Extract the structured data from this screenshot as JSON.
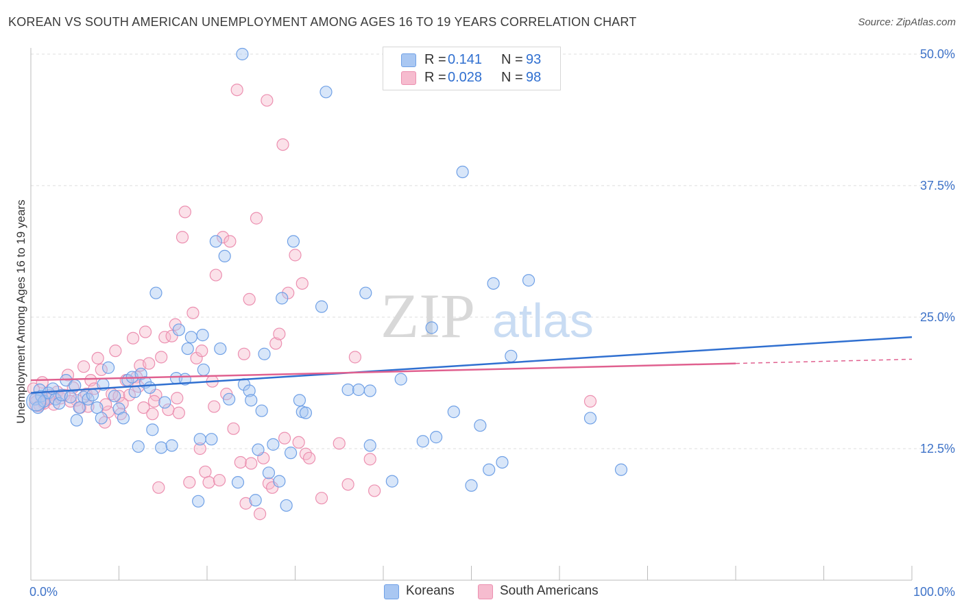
{
  "title": "KOREAN VS SOUTH AMERICAN UNEMPLOYMENT AMONG AGES 16 TO 19 YEARS CORRELATION CHART",
  "source": "Source: ZipAtlas.com",
  "watermark": {
    "zip": "ZIP",
    "atlas": "atlas"
  },
  "colors": {
    "blue": "#6fa0e6",
    "blue_fill": "#a9c7f2",
    "blue_line": "#2f6fd0",
    "pink": "#ec8fb0",
    "pink_fill": "#f6bccf",
    "pink_line": "#e0608f",
    "axis_text": "#3d72c8",
    "grid": "#dcdcdc"
  },
  "legend": {
    "r_label": "R =",
    "n_label": "N =",
    "blue": {
      "r": "0.141",
      "n": "93"
    },
    "pink": {
      "r": "0.028",
      "n": "98"
    }
  },
  "bottom_legend": {
    "blue": "Koreans",
    "pink": "South Americans"
  },
  "chart_data": {
    "type": "scatter",
    "ylabel": "Unemployment Among Ages 16 to 19 years",
    "xlabel": "",
    "xlim": [
      0,
      100
    ],
    "ylim": [
      0,
      50
    ],
    "x_tick_labels": [
      "0.0%",
      "100.0%"
    ],
    "y_ticks": [
      12.5,
      25.0,
      37.5,
      50.0
    ],
    "y_tick_labels": [
      "12.5%",
      "25.0%",
      "37.5%",
      "50.0%"
    ],
    "grid": true,
    "series": [
      {
        "name": "Koreans",
        "trend": {
          "x": [
            0,
            100
          ],
          "y": [
            17.8,
            23.1
          ]
        },
        "points": [
          [
            0.5,
            17.2
          ],
          [
            0.8,
            16.4
          ],
          [
            1.0,
            18.1
          ],
          [
            1.2,
            17.5
          ],
          [
            1.5,
            17.0
          ],
          [
            2.0,
            17.8
          ],
          [
            2.5,
            18.2
          ],
          [
            2.8,
            17.2
          ],
          [
            3.2,
            16.8
          ],
          [
            3.5,
            17.6
          ],
          [
            4.0,
            19.0
          ],
          [
            4.5,
            17.4
          ],
          [
            5.0,
            18.5
          ],
          [
            5.5,
            16.4
          ],
          [
            5.2,
            15.2
          ],
          [
            6.0,
            17.4
          ],
          [
            6.5,
            17.2
          ],
          [
            7.0,
            17.6
          ],
          [
            7.5,
            16.4
          ],
          [
            8.0,
            15.4
          ],
          [
            8.2,
            18.6
          ],
          [
            8.8,
            20.2
          ],
          [
            9.5,
            17.5
          ],
          [
            10.0,
            16.3
          ],
          [
            10.5,
            15.4
          ],
          [
            11.0,
            19.0
          ],
          [
            11.5,
            19.3
          ],
          [
            11.8,
            17.9
          ],
          [
            12.5,
            19.6
          ],
          [
            12.2,
            12.7
          ],
          [
            13.0,
            18.8
          ],
          [
            13.5,
            18.3
          ],
          [
            13.8,
            14.3
          ],
          [
            14.2,
            27.3
          ],
          [
            14.8,
            12.6
          ],
          [
            15.2,
            16.9
          ],
          [
            16.0,
            12.8
          ],
          [
            16.5,
            19.2
          ],
          [
            16.8,
            23.8
          ],
          [
            17.5,
            19.1
          ],
          [
            17.8,
            22.0
          ],
          [
            18.2,
            23.1
          ],
          [
            19.2,
            13.4
          ],
          [
            19.5,
            23.3
          ],
          [
            19.6,
            20.0
          ],
          [
            19.0,
            7.5
          ],
          [
            20.5,
            13.4
          ],
          [
            21.0,
            32.2
          ],
          [
            21.5,
            22.0
          ],
          [
            22.0,
            30.8
          ],
          [
            22.5,
            17.2
          ],
          [
            23.5,
            9.3
          ],
          [
            24.0,
            50.0
          ],
          [
            24.2,
            18.6
          ],
          [
            24.8,
            18.0
          ],
          [
            25.5,
            7.6
          ],
          [
            25.0,
            17.1
          ],
          [
            25.8,
            12.4
          ],
          [
            26.5,
            21.5
          ],
          [
            26.2,
            16.1
          ],
          [
            27.0,
            10.2
          ],
          [
            27.5,
            12.9
          ],
          [
            28.2,
            9.4
          ],
          [
            28.5,
            26.8
          ],
          [
            29.0,
            7.1
          ],
          [
            29.5,
            12.1
          ],
          [
            29.8,
            32.2
          ],
          [
            30.5,
            17.1
          ],
          [
            30.8,
            16.0
          ],
          [
            31.2,
            15.9
          ],
          [
            33.0,
            26.0
          ],
          [
            33.5,
            46.4
          ],
          [
            36.0,
            18.1
          ],
          [
            37.2,
            18.1
          ],
          [
            38.0,
            27.3
          ],
          [
            38.5,
            18.0
          ],
          [
            38.5,
            12.8
          ],
          [
            41.0,
            9.4
          ],
          [
            42.0,
            19.1
          ],
          [
            44.5,
            13.2
          ],
          [
            45.5,
            24.0
          ],
          [
            46.0,
            13.6
          ],
          [
            48.0,
            16.0
          ],
          [
            49.0,
            38.8
          ],
          [
            50.0,
            9.0
          ],
          [
            51.0,
            14.7
          ],
          [
            52.0,
            10.5
          ],
          [
            52.5,
            28.2
          ],
          [
            53.5,
            11.2
          ],
          [
            54.5,
            21.3
          ],
          [
            56.5,
            28.5
          ],
          [
            63.5,
            15.4
          ],
          [
            67.0,
            10.5
          ]
        ]
      },
      {
        "name": "South Americans",
        "trend": {
          "x": [
            0,
            80
          ],
          "y": [
            19.0,
            20.6
          ]
        },
        "trend_dashed": {
          "x": [
            80,
            100
          ],
          "y": [
            20.6,
            21.0
          ]
        },
        "points": [
          [
            0.3,
            18.2
          ],
          [
            0.6,
            17.3
          ],
          [
            1.0,
            16.6
          ],
          [
            1.3,
            18.8
          ],
          [
            1.7,
            17.3
          ],
          [
            2.2,
            17.6
          ],
          [
            2.6,
            16.7
          ],
          [
            3.0,
            17.9
          ],
          [
            3.4,
            17.3
          ],
          [
            3.8,
            17.6
          ],
          [
            4.2,
            19.5
          ],
          [
            4.8,
            18.3
          ],
          [
            5.2,
            17.1
          ],
          [
            5.6,
            16.4
          ],
          [
            6.0,
            20.3
          ],
          [
            6.3,
            17.7
          ],
          [
            6.8,
            19.0
          ],
          [
            7.2,
            18.2
          ],
          [
            7.6,
            21.1
          ],
          [
            8.0,
            20.0
          ],
          [
            8.4,
            15.0
          ],
          [
            8.8,
            16.0
          ],
          [
            9.2,
            17.7
          ],
          [
            9.6,
            21.8
          ],
          [
            10.0,
            17.5
          ],
          [
            10.4,
            16.8
          ],
          [
            10.8,
            19.0
          ],
          [
            11.2,
            17.6
          ],
          [
            11.6,
            23.0
          ],
          [
            12.0,
            19.3
          ],
          [
            12.4,
            20.4
          ],
          [
            12.8,
            16.4
          ],
          [
            13.0,
            23.6
          ],
          [
            13.4,
            20.6
          ],
          [
            13.8,
            15.8
          ],
          [
            14.2,
            17.6
          ],
          [
            14.5,
            8.8
          ],
          [
            14.8,
            21.2
          ],
          [
            15.2,
            23.1
          ],
          [
            15.6,
            16.2
          ],
          [
            16.0,
            23.2
          ],
          [
            16.4,
            24.3
          ],
          [
            16.8,
            15.9
          ],
          [
            17.2,
            32.6
          ],
          [
            17.5,
            35.0
          ],
          [
            18.0,
            9.3
          ],
          [
            18.4,
            25.4
          ],
          [
            18.8,
            21.1
          ],
          [
            19.2,
            12.5
          ],
          [
            19.4,
            21.8
          ],
          [
            19.8,
            10.3
          ],
          [
            20.2,
            9.3
          ],
          [
            20.6,
            18.9
          ],
          [
            21.0,
            29.0
          ],
          [
            21.4,
            9.5
          ],
          [
            21.8,
            32.6
          ],
          [
            22.2,
            17.7
          ],
          [
            22.6,
            32.2
          ],
          [
            23.0,
            14.4
          ],
          [
            23.4,
            46.6
          ],
          [
            23.8,
            11.2
          ],
          [
            24.2,
            21.5
          ],
          [
            24.4,
            7.3
          ],
          [
            24.8,
            26.7
          ],
          [
            25.0,
            11.1
          ],
          [
            25.6,
            34.4
          ],
          [
            26.0,
            6.3
          ],
          [
            26.4,
            11.6
          ],
          [
            26.8,
            45.6
          ],
          [
            27.0,
            9.2
          ],
          [
            27.4,
            8.8
          ],
          [
            27.8,
            22.5
          ],
          [
            28.2,
            23.4
          ],
          [
            28.6,
            41.4
          ],
          [
            28.8,
            13.5
          ],
          [
            29.2,
            27.3
          ],
          [
            30.0,
            30.9
          ],
          [
            30.4,
            13.1
          ],
          [
            30.8,
            28.2
          ],
          [
            31.2,
            12.0
          ],
          [
            31.6,
            11.6
          ],
          [
            33.0,
            7.8
          ],
          [
            35.0,
            13.0
          ],
          [
            36.0,
            9.1
          ],
          [
            36.8,
            21.2
          ],
          [
            38.5,
            11.5
          ],
          [
            39.0,
            8.5
          ],
          [
            63.5,
            17.0
          ],
          [
            2.0,
            17.2
          ],
          [
            1.5,
            16.8
          ],
          [
            4.5,
            17.0
          ],
          [
            6.5,
            16.5
          ],
          [
            8.5,
            16.7
          ],
          [
            10.2,
            15.8
          ],
          [
            12.2,
            18.4
          ],
          [
            14.0,
            17.0
          ],
          [
            16.6,
            17.3
          ],
          [
            20.8,
            16.5
          ]
        ]
      }
    ]
  }
}
